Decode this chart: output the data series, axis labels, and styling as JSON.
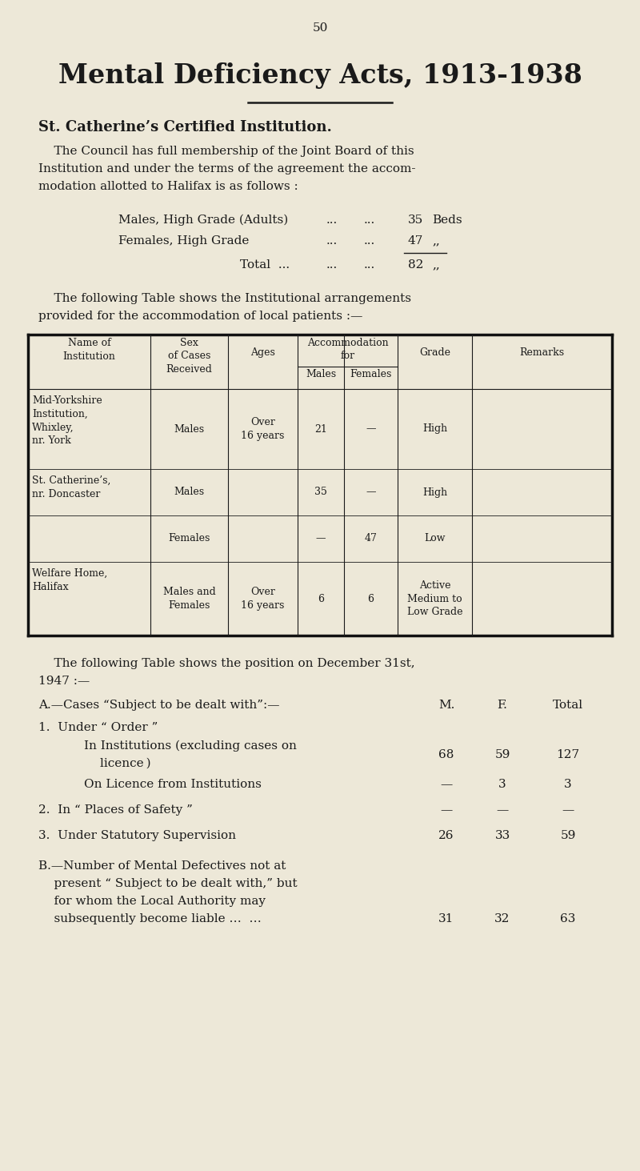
{
  "bg_color": "#ede8d8",
  "text_color": "#1a1a1a",
  "page_number": "50",
  "main_title": "Mental Deficiency Acts, 1913-1938",
  "section_title": "St. Catherine’s Certified Institution.",
  "table1_rows": [
    {
      "name": "Mid-Yorkshire\nInstitution,\nWhixley,\nnr. York",
      "sex": "Males",
      "ages": "Over\n16 years",
      "males": "21",
      "females": "—",
      "grade": "High",
      "remarks": ""
    },
    {
      "name": "St. Catherine’s,\nnr. Doncaster",
      "sex": "Males",
      "ages": "",
      "males": "35",
      "females": "—",
      "grade": "High",
      "remarks": ""
    },
    {
      "name": "",
      "sex": "Females",
      "ages": "",
      "males": "—",
      "females": "47",
      "grade": "Low",
      "remarks": ""
    },
    {
      "name": "Welfare Home,\nHalifax",
      "sex": "Males and\nFemales",
      "ages": "Over\n16 years",
      "males": "6",
      "females": "6",
      "grade": "Active\nMedium to\nLow Grade",
      "remarks": ""
    }
  ]
}
